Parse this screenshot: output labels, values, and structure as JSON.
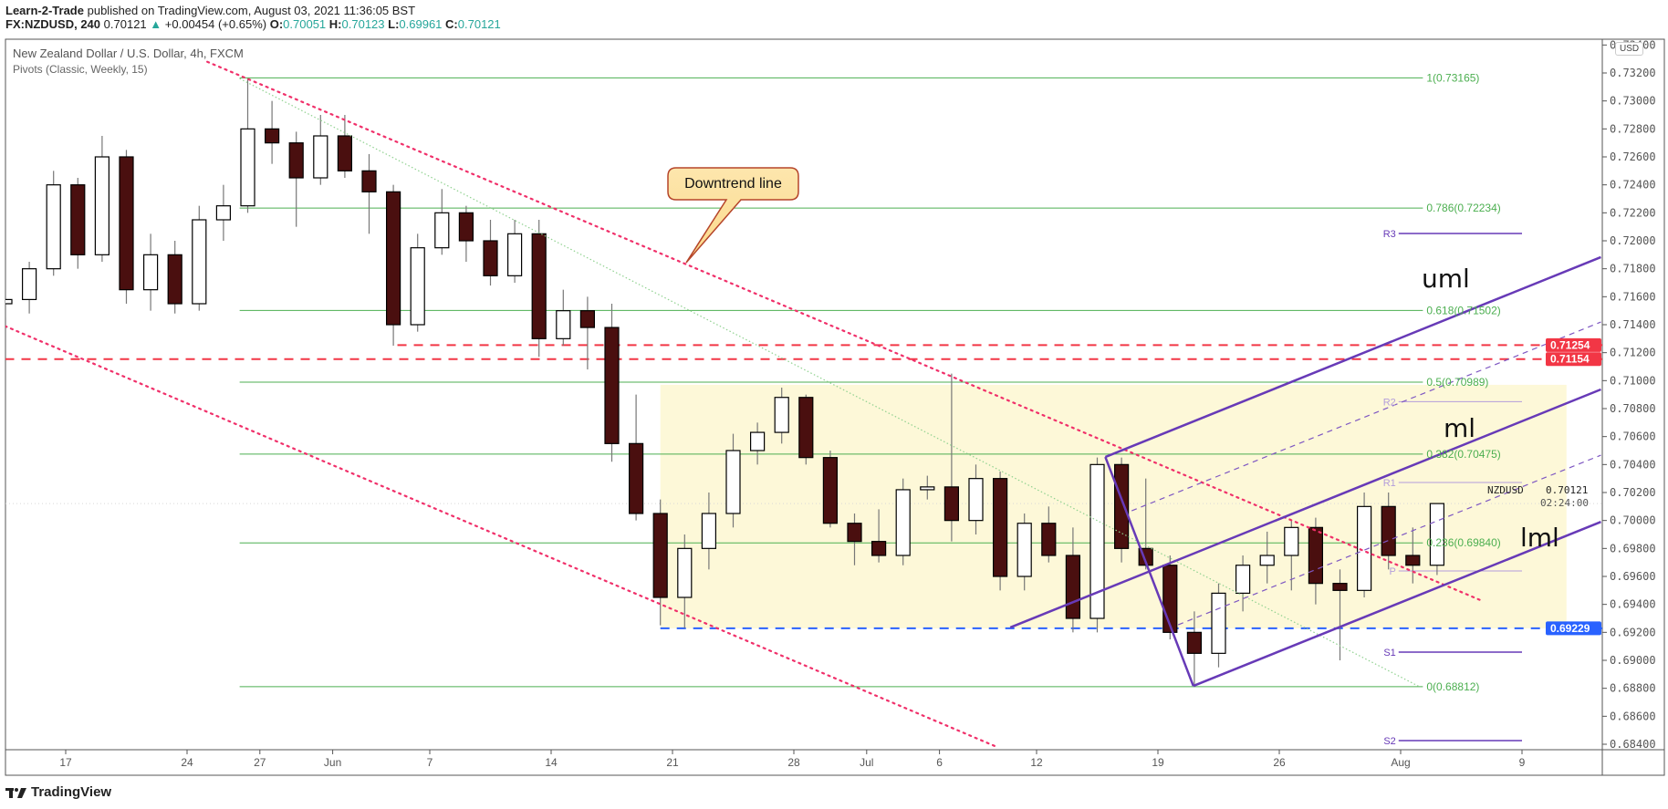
{
  "header": {
    "publisher": "Learn-2-Trade",
    "published_text": "published on TradingView.com, August 03, 2021 11:36:05 BST",
    "symbol": "FX:NZDUSD, 240",
    "last": "0.70121",
    "change": "+0.00454 (+0.65%)",
    "o_label": "O:",
    "o": "0.70051",
    "h_label": "H:",
    "h": "0.70123",
    "l_label": "L:",
    "l": "0.69961",
    "c_label": "C:",
    "c": "0.70121",
    "up_color": "#26a69a"
  },
  "legend": {
    "title": "New Zealand Dollar / U.S. Dollar, 4h, FXCM",
    "indicator": "Pivots (Classic, Weekly, 15)"
  },
  "price_axis": {
    "currency": "USD",
    "symbol_label": "NZDUSD",
    "current_price": "0.70121",
    "countdown": "02:24:00"
  },
  "annotations": {
    "callout": "Downtrend line",
    "uml": "uml",
    "ml": "ml",
    "lml": "lml"
  },
  "branding": {
    "logo_text": "TradingView"
  },
  "chart_data": {
    "type": "candlestick",
    "title": "New Zealand Dollar / U.S. Dollar, 4h, FXCM",
    "ylim": [
      0.68361,
      0.73441
    ],
    "xlim": [
      "2021-05-12 12:00",
      "2021-08-12 07:00"
    ],
    "grid": false,
    "y_ticks": [
      "0.73400",
      "0.73200",
      "0.73000",
      "0.72800",
      "0.72600",
      "0.72400",
      "0.72200",
      "0.72000",
      "0.71800",
      "0.71600",
      "0.71400",
      "0.71200",
      "0.71000",
      "0.70800",
      "0.70600",
      "0.70400",
      "0.70200",
      "0.70000",
      "0.69800",
      "0.69600",
      "0.69400",
      "0.69200",
      "0.69000",
      "0.68800",
      "0.68600",
      "0.68400"
    ],
    "x_ticks": [
      {
        "label": "17",
        "date": "2021-05-17"
      },
      {
        "label": "24",
        "date": "2021-05-24"
      },
      {
        "label": "27",
        "date": "2021-05-27"
      },
      {
        "label": "Jun",
        "date": "2021-06-01"
      },
      {
        "label": "7",
        "date": "2021-06-07"
      },
      {
        "label": "14",
        "date": "2021-06-14"
      },
      {
        "label": "21",
        "date": "2021-06-21"
      },
      {
        "label": "28",
        "date": "2021-06-28"
      },
      {
        "label": "Jul",
        "date": "2021-07-01"
      },
      {
        "label": "6",
        "date": "2021-07-06"
      },
      {
        "label": "12",
        "date": "2021-07-12"
      },
      {
        "label": "19",
        "date": "2021-07-19"
      },
      {
        "label": "26",
        "date": "2021-07-26"
      },
      {
        "label": "Aug",
        "date": "2021-08-02"
      },
      {
        "label": "9",
        "date": "2021-08-09"
      }
    ],
    "colors": {
      "up_body": "#ffffff",
      "down_body": "#4a0f0f",
      "outline": "#000000",
      "wick": "#777777"
    },
    "candles_ohlc": [
      [
        "2021-05-12",
        0.7155,
        0.7165,
        0.7145,
        0.7158
      ],
      [
        "2021-05-13",
        0.7158,
        0.7185,
        0.7148,
        0.718
      ],
      [
        "2021-05-14",
        0.718,
        0.725,
        0.7175,
        0.724
      ],
      [
        "2021-05-17",
        0.724,
        0.7245,
        0.718,
        0.719
      ],
      [
        "2021-05-18",
        0.719,
        0.7275,
        0.7185,
        0.726
      ],
      [
        "2021-05-19",
        0.726,
        0.7265,
        0.7155,
        0.7165
      ],
      [
        "2021-05-20",
        0.7165,
        0.7205,
        0.715,
        0.719
      ],
      [
        "2021-05-21",
        0.719,
        0.72,
        0.7148,
        0.7155
      ],
      [
        "2021-05-24",
        0.7155,
        0.7225,
        0.715,
        0.7215
      ],
      [
        "2021-05-25",
        0.7215,
        0.724,
        0.72,
        0.7225
      ],
      [
        "2021-05-26",
        0.7225,
        0.7316,
        0.722,
        0.728
      ],
      [
        "2021-05-27",
        0.728,
        0.73,
        0.7255,
        0.727
      ],
      [
        "2021-05-28",
        0.727,
        0.7278,
        0.721,
        0.7245
      ],
      [
        "2021-05-31",
        0.7245,
        0.729,
        0.724,
        0.7275
      ],
      [
        "2021-06-01",
        0.7275,
        0.729,
        0.7245,
        0.725
      ],
      [
        "2021-06-02",
        0.725,
        0.7262,
        0.7205,
        0.7235
      ],
      [
        "2021-06-03",
        0.7235,
        0.724,
        0.7125,
        0.714
      ],
      [
        "2021-06-04",
        0.714,
        0.7205,
        0.7135,
        0.7195
      ],
      [
        "2021-06-07",
        0.7195,
        0.7237,
        0.719,
        0.722
      ],
      [
        "2021-06-08",
        0.722,
        0.7225,
        0.7185,
        0.72
      ],
      [
        "2021-06-09",
        0.72,
        0.7215,
        0.7168,
        0.7175
      ],
      [
        "2021-06-10",
        0.7175,
        0.7215,
        0.717,
        0.7205
      ],
      [
        "2021-06-11",
        0.7205,
        0.7215,
        0.7117,
        0.713
      ],
      [
        "2021-06-14",
        0.713,
        0.7165,
        0.7125,
        0.715
      ],
      [
        "2021-06-15",
        0.715,
        0.716,
        0.7108,
        0.7138
      ],
      [
        "2021-06-16",
        0.7138,
        0.7155,
        0.7042,
        0.7055
      ],
      [
        "2021-06-17",
        0.7055,
        0.709,
        0.7,
        0.7005
      ],
      [
        "2021-06-18",
        0.7005,
        0.7015,
        0.6925,
        0.6945
      ],
      [
        "2021-06-21",
        0.6945,
        0.699,
        0.6923,
        0.698
      ],
      [
        "2021-06-22",
        0.698,
        0.702,
        0.6965,
        0.7005
      ],
      [
        "2021-06-23",
        0.7005,
        0.7062,
        0.6995,
        0.705
      ],
      [
        "2021-06-24",
        0.705,
        0.707,
        0.704,
        0.7063
      ],
      [
        "2021-06-25",
        0.7063,
        0.7095,
        0.7055,
        0.7088
      ],
      [
        "2021-06-28",
        0.7088,
        0.709,
        0.704,
        0.7045
      ],
      [
        "2021-06-29",
        0.7045,
        0.705,
        0.6995,
        0.6998
      ],
      [
        "2021-06-30",
        0.6998,
        0.7005,
        0.6968,
        0.6985
      ],
      [
        "2021-07-01",
        0.6985,
        0.7008,
        0.697,
        0.6975
      ],
      [
        "2021-07-02",
        0.6975,
        0.703,
        0.6968,
        0.7022
      ],
      [
        "2021-07-05",
        0.7022,
        0.7032,
        0.7015,
        0.7024
      ],
      [
        "2021-07-06",
        0.7024,
        0.7105,
        0.6985,
        0.7
      ],
      [
        "2021-07-07",
        0.7,
        0.704,
        0.699,
        0.703
      ],
      [
        "2021-07-08",
        0.703,
        0.7035,
        0.695,
        0.696
      ],
      [
        "2021-07-09",
        0.696,
        0.7005,
        0.695,
        0.6998
      ],
      [
        "2021-07-12",
        0.6998,
        0.701,
        0.697,
        0.6975
      ],
      [
        "2021-07-13",
        0.6975,
        0.6995,
        0.692,
        0.693
      ],
      [
        "2021-07-14",
        0.693,
        0.7045,
        0.692,
        0.704
      ],
      [
        "2021-07-15",
        0.704,
        0.7045,
        0.697,
        0.698
      ],
      [
        "2021-07-16",
        0.698,
        0.703,
        0.6965,
        0.6968
      ],
      [
        "2021-07-19",
        0.6968,
        0.6975,
        0.6915,
        0.692
      ],
      [
        "2021-07-20",
        0.692,
        0.6935,
        0.6881,
        0.6905
      ],
      [
        "2021-07-21",
        0.6905,
        0.6955,
        0.6895,
        0.6948
      ],
      [
        "2021-07-22",
        0.6948,
        0.6975,
        0.6935,
        0.6968
      ],
      [
        "2021-07-23",
        0.6968,
        0.6992,
        0.6955,
        0.6975
      ],
      [
        "2021-07-26",
        0.6975,
        0.7,
        0.695,
        0.6995
      ],
      [
        "2021-07-27",
        0.6995,
        0.7002,
        0.694,
        0.6955
      ],
      [
        "2021-07-28",
        0.6955,
        0.6965,
        0.69,
        0.695
      ],
      [
        "2021-07-29",
        0.695,
        0.702,
        0.6945,
        0.701
      ],
      [
        "2021-07-30",
        0.701,
        0.702,
        0.6965,
        0.6975
      ],
      [
        "2021-08-02",
        0.6975,
        0.6995,
        0.6955,
        0.6968
      ],
      [
        "2021-08-03",
        0.6968,
        0.70123,
        0.6961,
        0.70121
      ]
    ],
    "fibonacci": {
      "start": "2021-05-26 04:00",
      "end": "2021-08-02 22:00",
      "color": "#4caf50",
      "levels": [
        {
          "price": 0.73165,
          "label": "1(0.73165)"
        },
        {
          "price": 0.72234,
          "label": "0.786(0.72234)"
        },
        {
          "price": 0.71502,
          "label": "0.618(0.71502)"
        },
        {
          "price": 0.70989,
          "label": "0.5(0.70989)"
        },
        {
          "price": 0.70475,
          "label": "0.382(0.70475)"
        },
        {
          "price": 0.6984,
          "label": "0.236(0.69840)"
        },
        {
          "price": 0.68812,
          "label": "0(0.68812)"
        }
      ]
    },
    "pivots": {
      "start": "2021-07-30 22:00",
      "end": "2021-08-09 00:00",
      "levels": [
        {
          "label": "R3",
          "price": 0.72052,
          "color": "#673ab7"
        },
        {
          "label": "R2",
          "price": 0.7085,
          "color": "#b39ddb"
        },
        {
          "label": "R1",
          "price": 0.70272,
          "color": "#b39ddb"
        },
        {
          "label": "P",
          "price": 0.69639,
          "color": "#b39ddb"
        },
        {
          "label": "S1",
          "price": 0.69059,
          "color": "#673ab7"
        },
        {
          "label": "S2",
          "price": 0.68426,
          "color": "#673ab7"
        }
      ]
    },
    "horizontal_levels": [
      {
        "price": 0.71254,
        "label": "0.71254",
        "start": "2021-06-03 16:00",
        "color": "#f23645"
      },
      {
        "price": 0.71154,
        "label": "0.71154",
        "start": "2021-05-12 12:00",
        "color": "#f23645"
      },
      {
        "price": 0.69229,
        "label": "0.69229",
        "start": "2021-06-18 12:00",
        "color": "#2962ff"
      }
    ],
    "range_box": {
      "start": "2021-06-18 12:00",
      "end": "2021-08-10 20:00",
      "top": 0.7097,
      "bottom": 0.69229,
      "color": "#fdf8d8"
    },
    "trend_lines": [
      {
        "name": "downtrend-line",
        "style": "dotted",
        "color": "#f0306a",
        "from": [
          "2021-05-24 20:00",
          0.7328
        ],
        "to": [
          "2021-08-05 07:00",
          0.6943
        ]
      },
      {
        "name": "lower-channel-line",
        "style": "dotted",
        "color": "#f0306a",
        "from": [
          "2021-05-12 12:00",
          0.7139
        ],
        "to": [
          "2021-07-08 09:00",
          0.6838
        ]
      },
      {
        "name": "fib-diagonal-line",
        "style": "dotted-thin",
        "color": "#8fd18f",
        "from": [
          "2021-05-26 04:00",
          0.7316
        ],
        "to": [
          "2021-08-02 19:00",
          0.6881
        ]
      },
      {
        "name": "pitchfork-handle",
        "style": "solid",
        "color": "#673ab7",
        "from": [
          "2021-07-14 20:00",
          0.70454
        ],
        "to": [
          "2021-07-20 11:00",
          0.68817
        ]
      },
      {
        "name": "uml-line",
        "style": "solid",
        "color": "#673ab7",
        "from": [
          "2021-07-14 20:00",
          0.70454
        ],
        "to": [
          "2021-08-12 06:00",
          0.71883
        ]
      },
      {
        "name": "ml-line",
        "style": "solid",
        "color": "#673ab7",
        "from": [
          "2021-07-08 22:00",
          0.69235
        ],
        "to": [
          "2021-08-12 06:00",
          0.70937
        ]
      },
      {
        "name": "lml-line",
        "style": "solid",
        "color": "#673ab7",
        "from": [
          "2021-07-20 11:00",
          0.68817
        ],
        "to": [
          "2021-08-12 06:00",
          0.6999
        ]
      },
      {
        "name": "upper-warning-line",
        "style": "dashed",
        "color": "#7e57c2",
        "from": [
          "2021-07-15 22:00",
          0.70069
        ],
        "to": [
          "2021-08-12 06:00",
          0.71419
        ]
      },
      {
        "name": "lower-warning-line",
        "style": "dashed",
        "color": "#7e57c2",
        "from": [
          "2021-07-19 20:00",
          0.69254
        ],
        "to": [
          "2021-08-12 06:00",
          0.70467
        ]
      }
    ],
    "current_price": 0.70121
  }
}
